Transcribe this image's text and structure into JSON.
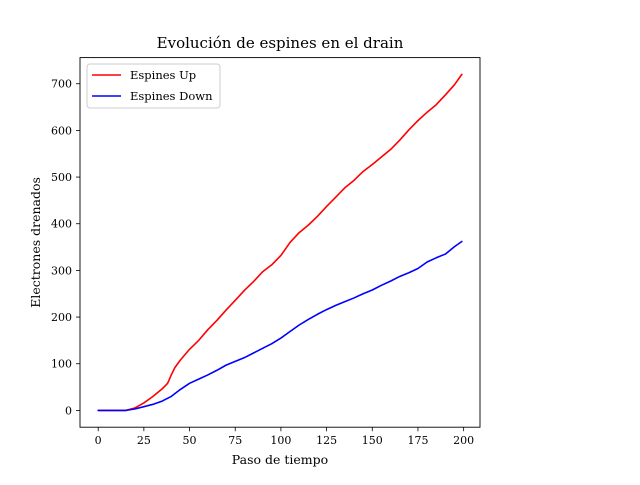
{
  "chart_data": {
    "type": "line",
    "title": "Evolución de espines en el drain",
    "xlabel": "Paso de tiempo",
    "ylabel": "Electrones drenados",
    "xlim": [
      -9.95,
      208.95
    ],
    "ylim": [
      -36,
      756
    ],
    "xticks": [
      0,
      25,
      50,
      75,
      100,
      125,
      150,
      175,
      200
    ],
    "yticks": [
      0,
      100,
      200,
      300,
      400,
      500,
      600,
      700
    ],
    "grid": false,
    "legend_position": "top-left",
    "series": [
      {
        "name": "Espines Up",
        "color": "#ff0000",
        "x": [
          0,
          10,
          15,
          20,
          25,
          30,
          35,
          38,
          40,
          42,
          45,
          50,
          55,
          60,
          65,
          70,
          75,
          80,
          85,
          90,
          95,
          100,
          105,
          110,
          115,
          120,
          125,
          130,
          135,
          140,
          145,
          150,
          155,
          160,
          165,
          170,
          175,
          180,
          185,
          190,
          195,
          199
        ],
        "y": [
          0,
          0,
          0,
          5,
          16,
          30,
          46,
          58,
          76,
          92,
          108,
          131,
          150,
          173,
          193,
          215,
          236,
          257,
          276,
          297,
          312,
          332,
          360,
          381,
          397,
          416,
          437,
          457,
          477,
          493,
          512,
          527,
          543,
          559,
          579,
          601,
          621,
          639,
          655,
          676,
          698,
          720
        ]
      },
      {
        "name": "Espines Down",
        "color": "#0000ff",
        "x": [
          0,
          10,
          15,
          20,
          25,
          30,
          35,
          40,
          45,
          50,
          55,
          60,
          65,
          70,
          75,
          80,
          85,
          90,
          95,
          100,
          105,
          110,
          115,
          120,
          125,
          130,
          135,
          140,
          145,
          150,
          155,
          160,
          165,
          170,
          175,
          180,
          185,
          190,
          195,
          199
        ],
        "y": [
          0,
          0,
          0,
          3,
          8,
          13,
          20,
          30,
          45,
          58,
          67,
          76,
          86,
          97,
          105,
          113,
          123,
          133,
          143,
          155,
          169,
          183,
          195,
          206,
          216,
          225,
          233,
          241,
          250,
          258,
          268,
          277,
          287,
          295,
          304,
          318,
          327,
          335,
          351,
          362
        ]
      }
    ]
  }
}
